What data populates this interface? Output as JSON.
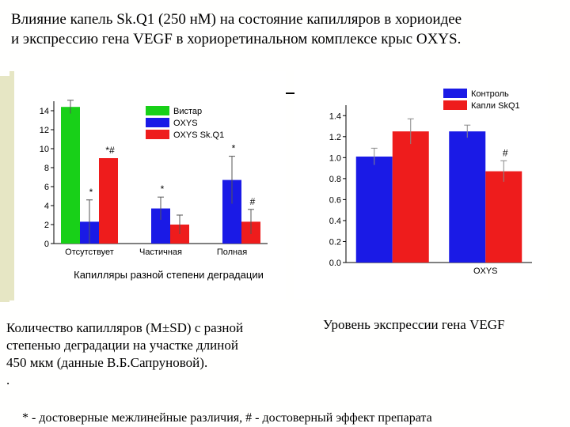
{
  "slide": {
    "title_lines": [
      "Влияние капель Sk.Q1 (250 нМ) на состояние капилляров в хориоидее",
      "и  экспрессию гена VEGF в хориоретинальном комплексе крыс OXYS."
    ],
    "caption_left_lines": [
      "Количество капилляров (M±SD) с разной",
      "степенью деградации на участке длиной",
      "450 мкм (данные В.Б.Сапруновой).",
      "."
    ],
    "caption_right": "Уровень экспрессии гена VEGF",
    "footnote": "* - достоверные межлинейные различия,  # - достоверный эффект препарата"
  },
  "chart_data": [
    {
      "type": "bar",
      "categories": [
        "Отсутствует",
        "Частичная",
        "Полная"
      ],
      "series": [
        {
          "name": "Вистар",
          "color": "#18d018",
          "values": [
            14.4,
            null,
            null
          ],
          "errors": [
            0.7,
            null,
            null
          ]
        },
        {
          "name": "OXYS",
          "color": "#1a1ae6",
          "values": [
            2.3,
            3.7,
            6.7
          ],
          "errors": [
            2.3,
            1.2,
            2.5
          ]
        },
        {
          "name": "OXYS Sk.Q1",
          "color": "#ee1c1c",
          "values": [
            9.0,
            2.0,
            2.3
          ],
          "errors": [
            null,
            1.0,
            1.3
          ]
        }
      ],
      "annotations": [
        {
          "category": "Отсутствует",
          "series": "OXYS",
          "text": "*"
        },
        {
          "category": "Отсутствует",
          "series": "OXYS Sk.Q1",
          "text": "*#"
        },
        {
          "category": "Частичная",
          "series": "OXYS",
          "text": "*"
        },
        {
          "category": "Полная",
          "series": "OXYS",
          "text": "*"
        },
        {
          "category": "Полная",
          "series": "OXYS Sk.Q1",
          "text": "#"
        }
      ],
      "xlabel": "Капилляры разной степени деградации",
      "ylabel": "",
      "ylim": [
        0,
        15
      ],
      "yticks": [
        "0",
        "2",
        "4",
        "6",
        "8",
        "10",
        "12",
        "14"
      ],
      "legend_position": "top-right",
      "grid": false
    },
    {
      "type": "bar",
      "categories": [
        "",
        "OXYS"
      ],
      "series": [
        {
          "name": "Контроль",
          "color": "#1a1ae6",
          "values": [
            1.01,
            1.25
          ],
          "errors": [
            0.08,
            0.06
          ]
        },
        {
          "name": "Капли SkQ1",
          "color": "#ee1c1c",
          "values": [
            1.25,
            0.87
          ],
          "errors": [
            0.12,
            0.1
          ]
        }
      ],
      "annotations": [
        {
          "category": "OXYS",
          "series": "Капли SkQ1",
          "text": "#"
        }
      ],
      "xlabel": "",
      "ylabel": "",
      "ylim": [
        0,
        1.5
      ],
      "yticks": [
        "0.0",
        "0.2",
        "0.4",
        "0.6",
        "0.8",
        "1.0",
        "1.2",
        "1.4"
      ],
      "legend_position": "top-right",
      "grid": false
    }
  ]
}
